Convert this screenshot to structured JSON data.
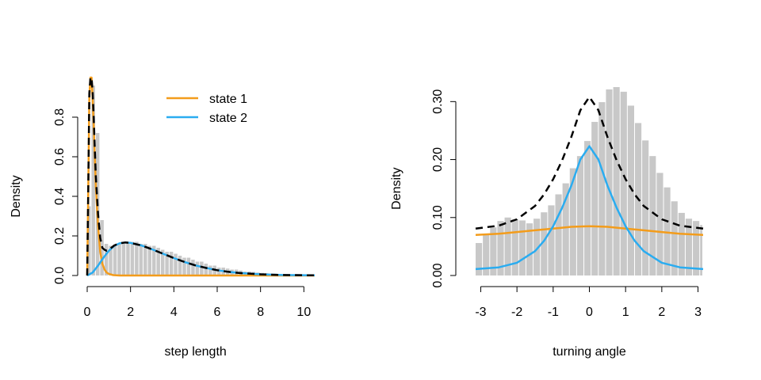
{
  "colors": {
    "state1": "#F39C1B",
    "state2": "#2AACF0",
    "total": "#000000",
    "bars": "#C8C8C8"
  },
  "chart_data": [
    {
      "type": "bar",
      "xlabel": "step length",
      "ylabel": "Density",
      "xlim": [
        0,
        10.5
      ],
      "ylim": [
        0,
        1.0
      ],
      "xticks": [
        "0",
        "2",
        "4",
        "6",
        "8",
        "10"
      ],
      "yticks": [
        "0.0",
        "0.2",
        "0.4",
        "0.6",
        "0.8"
      ],
      "legend": {
        "position": "top-center",
        "entries": [
          "state 1",
          "state 2"
        ]
      },
      "bin_width": 0.2,
      "histogram": [
        0.35,
        0.96,
        0.72,
        0.28,
        0.16,
        0.15,
        0.15,
        0.16,
        0.16,
        0.17,
        0.17,
        0.17,
        0.16,
        0.16,
        0.15,
        0.15,
        0.14,
        0.13,
        0.12,
        0.12,
        0.11,
        0.1,
        0.09,
        0.09,
        0.08,
        0.07,
        0.07,
        0.06,
        0.05,
        0.05,
        0.04,
        0.04,
        0.035,
        0.03,
        0.03,
        0.025,
        0.02,
        0.02,
        0.018,
        0.015,
        0.013,
        0.012,
        0.01,
        0.009,
        0.008,
        0.007,
        0.006,
        0.005,
        0.004,
        0.004,
        0.003,
        0.003,
        0.002
      ],
      "series": [
        {
          "name": "state 1",
          "x": [
            0,
            0.05,
            0.1,
            0.15,
            0.2,
            0.25,
            0.3,
            0.35,
            0.4,
            0.5,
            0.6,
            0.7,
            0.8,
            0.9,
            1.0,
            1.2,
            1.5,
            2.0,
            10.5
          ],
          "y": [
            0.0,
            0.45,
            0.9,
            1.02,
            1.0,
            0.9,
            0.76,
            0.6,
            0.45,
            0.25,
            0.12,
            0.06,
            0.03,
            0.015,
            0.008,
            0.002,
            0.0,
            0.0,
            0.0
          ]
        },
        {
          "name": "state 2",
          "x": [
            0,
            0.25,
            0.5,
            0.75,
            1.0,
            1.25,
            1.5,
            1.75,
            2.0,
            2.5,
            3.0,
            3.5,
            4.0,
            4.5,
            5.0,
            5.5,
            6.0,
            6.5,
            7.0,
            8.0,
            9.0,
            10.5
          ],
          "y": [
            0.0,
            0.015,
            0.05,
            0.09,
            0.125,
            0.15,
            0.163,
            0.167,
            0.165,
            0.152,
            0.132,
            0.11,
            0.088,
            0.068,
            0.051,
            0.038,
            0.027,
            0.019,
            0.013,
            0.006,
            0.0025,
            0.001
          ]
        },
        {
          "name": "",
          "x": [
            0,
            0.05,
            0.1,
            0.15,
            0.2,
            0.25,
            0.3,
            0.35,
            0.4,
            0.5,
            0.6,
            0.7,
            0.8,
            0.9,
            1.0,
            1.25,
            1.5,
            1.75,
            2.0,
            2.5,
            3.0,
            3.5,
            4.0,
            4.5,
            5.0,
            5.5,
            6.0,
            6.5,
            7.0,
            8.0,
            9.0,
            10.5
          ],
          "y": [
            0.0,
            0.46,
            0.92,
            1.04,
            1.03,
            0.93,
            0.8,
            0.64,
            0.5,
            0.31,
            0.19,
            0.14,
            0.13,
            0.125,
            0.13,
            0.152,
            0.163,
            0.167,
            0.165,
            0.152,
            0.132,
            0.11,
            0.088,
            0.068,
            0.051,
            0.038,
            0.027,
            0.019,
            0.013,
            0.006,
            0.0025,
            0.001
          ]
        }
      ]
    },
    {
      "type": "bar",
      "xlabel": "turning angle",
      "ylabel": "Density",
      "xlim": [
        -3.14159,
        3.14159
      ],
      "ylim": [
        0,
        0.31
      ],
      "xticks": [
        "-3",
        "-2",
        "-1",
        "0",
        "1",
        "2",
        "3"
      ],
      "yticks": [
        "0.00",
        "0.10",
        "0.20",
        "0.30"
      ],
      "bin_width": 0.2,
      "histogram": [
        0.056,
        0.071,
        0.083,
        0.094,
        0.1,
        0.097,
        0.095,
        0.09,
        0.098,
        0.109,
        0.121,
        0.14,
        0.159,
        0.185,
        0.206,
        0.232,
        0.265,
        0.299,
        0.321,
        0.325,
        0.317,
        0.293,
        0.263,
        0.233,
        0.206,
        0.177,
        0.152,
        0.128,
        0.108,
        0.098,
        0.094,
        0.087,
        0.083,
        0.08,
        0.071,
        0.062
      ],
      "series": [
        {
          "name": "state 1",
          "x": [
            -3.14159,
            -2.5,
            -2.0,
            -1.5,
            -1.0,
            -0.5,
            0.0,
            0.5,
            1.0,
            1.5,
            2.0,
            2.5,
            3.14159
          ],
          "y": [
            0.07,
            0.072,
            0.075,
            0.078,
            0.081,
            0.084,
            0.085,
            0.084,
            0.081,
            0.078,
            0.075,
            0.072,
            0.07
          ]
        },
        {
          "name": "state 2",
          "x": [
            -3.14159,
            -2.5,
            -2.0,
            -1.5,
            -1.25,
            -1.0,
            -0.75,
            -0.5,
            -0.25,
            0.0,
            0.25,
            0.5,
            0.75,
            1.0,
            1.25,
            1.5,
            2.0,
            2.5,
            3.14159
          ],
          "y": [
            0.011,
            0.014,
            0.022,
            0.042,
            0.06,
            0.085,
            0.117,
            0.155,
            0.2,
            0.223,
            0.2,
            0.155,
            0.117,
            0.085,
            0.06,
            0.042,
            0.022,
            0.014,
            0.011
          ]
        },
        {
          "name": "",
          "x": [
            -3.14159,
            -2.5,
            -2.0,
            -1.5,
            -1.25,
            -1.0,
            -0.75,
            -0.5,
            -0.25,
            0.0,
            0.25,
            0.5,
            0.75,
            1.0,
            1.25,
            1.5,
            2.0,
            2.5,
            3.14159
          ],
          "y": [
            0.081,
            0.086,
            0.097,
            0.12,
            0.14,
            0.166,
            0.199,
            0.239,
            0.285,
            0.308,
            0.285,
            0.239,
            0.199,
            0.166,
            0.14,
            0.12,
            0.097,
            0.086,
            0.081
          ]
        }
      ]
    }
  ]
}
